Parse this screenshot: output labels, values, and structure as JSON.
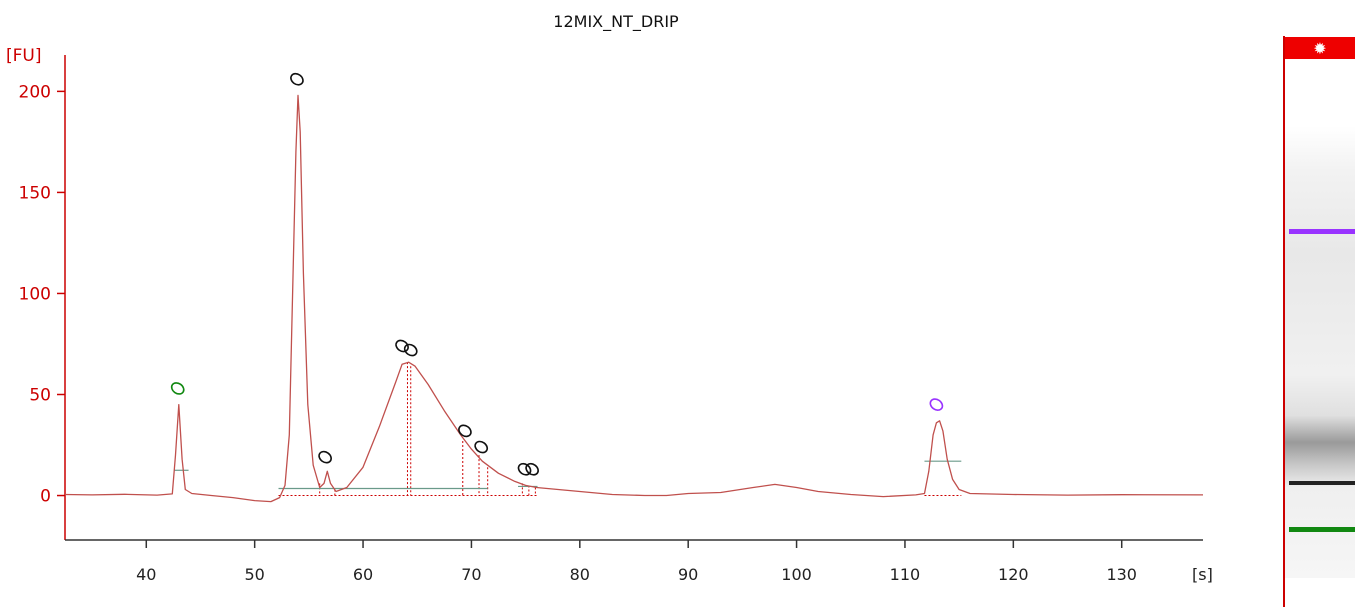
{
  "chart_data": {
    "type": "line",
    "title": "12MIX_NT_DRIP",
    "y_unit": "[FU]",
    "x_unit": "[s]",
    "xlim": [
      32.5,
      137.5
    ],
    "ylim": [
      -22,
      218
    ],
    "x_ticks": [
      40,
      50,
      60,
      70,
      80,
      90,
      100,
      110,
      120,
      130
    ],
    "y_ticks": [
      0,
      50,
      100,
      150,
      200
    ],
    "grid": false,
    "series": [
      {
        "points": [
          [
            32.5,
            0.5
          ],
          [
            35,
            0.3
          ],
          [
            38,
            0.6
          ],
          [
            41,
            0.2
          ],
          [
            42.4,
            0.8
          ],
          [
            42.7,
            20
          ],
          [
            43.0,
            45
          ],
          [
            43.3,
            18
          ],
          [
            43.6,
            3
          ],
          [
            44.2,
            1
          ],
          [
            46,
            0
          ],
          [
            48,
            -1
          ],
          [
            50,
            -2.5
          ],
          [
            51.5,
            -3
          ],
          [
            52.3,
            -1
          ],
          [
            52.8,
            5
          ],
          [
            53.2,
            30
          ],
          [
            53.5,
            100
          ],
          [
            53.8,
            170
          ],
          [
            54.0,
            198
          ],
          [
            54.2,
            180
          ],
          [
            54.5,
            110
          ],
          [
            54.9,
            45
          ],
          [
            55.4,
            15
          ],
          [
            56.0,
            4
          ],
          [
            56.4,
            6
          ],
          [
            56.7,
            12
          ],
          [
            57.0,
            6
          ],
          [
            57.5,
            2
          ],
          [
            58.5,
            4
          ],
          [
            60,
            14
          ],
          [
            61.5,
            34
          ],
          [
            63,
            56
          ],
          [
            63.6,
            65
          ],
          [
            64.2,
            66
          ],
          [
            64.8,
            64
          ],
          [
            66,
            55
          ],
          [
            67.5,
            42
          ],
          [
            69,
            30
          ],
          [
            70,
            23
          ],
          [
            71,
            17
          ],
          [
            72.5,
            11
          ],
          [
            74,
            7
          ],
          [
            75,
            5
          ],
          [
            76,
            4
          ],
          [
            78,
            3
          ],
          [
            80,
            2
          ],
          [
            83,
            0.5
          ],
          [
            86,
            0
          ],
          [
            88,
            0
          ],
          [
            90,
            1
          ],
          [
            93,
            1.5
          ],
          [
            96,
            4
          ],
          [
            98,
            5.5
          ],
          [
            100,
            4
          ],
          [
            102,
            2
          ],
          [
            105,
            0.5
          ],
          [
            108,
            -0.5
          ],
          [
            111,
            0.3
          ],
          [
            111.8,
            1
          ],
          [
            112.2,
            12
          ],
          [
            112.6,
            30
          ],
          [
            112.9,
            36
          ],
          [
            113.2,
            37
          ],
          [
            113.5,
            32
          ],
          [
            113.9,
            18
          ],
          [
            114.4,
            8
          ],
          [
            115,
            3
          ],
          [
            116,
            1
          ],
          [
            120,
            0.5
          ],
          [
            125,
            0.2
          ],
          [
            130,
            0.4
          ],
          [
            137.5,
            0.3
          ]
        ]
      }
    ],
    "peak_markers": [
      {
        "x": 42.9,
        "y": 53,
        "color": "green"
      },
      {
        "x": 53.9,
        "y": 206,
        "color": "black"
      },
      {
        "x": 56.5,
        "y": 19,
        "color": "black"
      },
      {
        "x": 63.6,
        "y": 74,
        "color": "black"
      },
      {
        "x": 64.4,
        "y": 72,
        "color": "black"
      },
      {
        "x": 69.4,
        "y": 32,
        "color": "black"
      },
      {
        "x": 70.9,
        "y": 24,
        "color": "black"
      },
      {
        "x": 74.9,
        "y": 13,
        "color": "black"
      },
      {
        "x": 75.6,
        "y": 13,
        "color": "black"
      },
      {
        "x": 112.9,
        "y": 45,
        "color": "purple"
      }
    ],
    "baselines": [
      {
        "x1": 42.6,
        "x2": 43.9,
        "y": 12.5
      },
      {
        "x1": 52.2,
        "x2": 71.5,
        "y": 3.5
      },
      {
        "x1": 74.3,
        "x2": 76.1,
        "y": 4.5
      },
      {
        "x1": 111.8,
        "x2": 115.2,
        "y": 17
      }
    ],
    "dotted_drops": [
      {
        "x": 56.0,
        "y": 6
      },
      {
        "x": 57.4,
        "y": 3
      },
      {
        "x": 64.1,
        "y": 66
      },
      {
        "x": 64.4,
        "y": 64
      },
      {
        "x": 69.2,
        "y": 27
      },
      {
        "x": 70.7,
        "y": 20
      },
      {
        "x": 71.5,
        "y": 14
      },
      {
        "x": 74.7,
        "y": 6
      },
      {
        "x": 75.3,
        "y": 5
      },
      {
        "x": 75.9,
        "y": 4
      }
    ]
  },
  "gel_lane": {
    "marker_colors": {
      "top": "#ee0000",
      "upper": "#9933ff",
      "lower": "#118811"
    },
    "line_color": "#cc0000",
    "text_color": "#cc0000"
  }
}
